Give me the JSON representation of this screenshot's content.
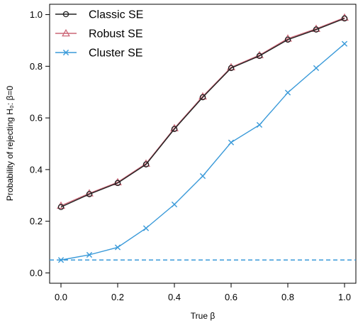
{
  "chart_data": {
    "type": "line",
    "title": "",
    "xlabel": "True β",
    "ylabel": "Probability of rejecting H₀: β=0",
    "xlim": [
      -0.04,
      1.04
    ],
    "ylim": [
      -0.04,
      1.04
    ],
    "x_ticks": [
      0.0,
      0.2,
      0.4,
      0.6,
      0.8,
      1.0
    ],
    "y_ticks": [
      0.0,
      0.2,
      0.4,
      0.6,
      0.8,
      1.0
    ],
    "x_tick_labels": [
      "0.0",
      "0.2",
      "0.4",
      "0.6",
      "0.8",
      "1.0"
    ],
    "y_tick_labels": [
      "0.0",
      "0.2",
      "0.4",
      "0.6",
      "0.8",
      "1.0"
    ],
    "x": [
      0.0,
      0.1,
      0.2,
      0.3,
      0.4,
      0.5,
      0.6,
      0.7,
      0.8,
      0.9,
      1.0
    ],
    "series": [
      {
        "name": "Classic SE",
        "color": "#222222",
        "marker": "circle",
        "values": [
          0.255,
          0.305,
          0.348,
          0.42,
          0.557,
          0.68,
          0.793,
          0.84,
          0.903,
          0.942,
          0.985
        ]
      },
      {
        "name": "Robust SE",
        "color": "#cc6677",
        "marker": "triangle",
        "values": [
          0.26,
          0.308,
          0.351,
          0.423,
          0.56,
          0.683,
          0.796,
          0.843,
          0.907,
          0.945,
          0.988
        ]
      },
      {
        "name": "Cluster SE",
        "color": "#3a9ad9",
        "marker": "x",
        "values": [
          0.05,
          0.07,
          0.099,
          0.173,
          0.265,
          0.375,
          0.505,
          0.573,
          0.698,
          0.793,
          0.887
        ]
      }
    ],
    "reference_line": {
      "y": 0.05,
      "style": "dashed",
      "color": "#3a9ad9"
    },
    "legend_position": "top-left",
    "grid": false
  }
}
